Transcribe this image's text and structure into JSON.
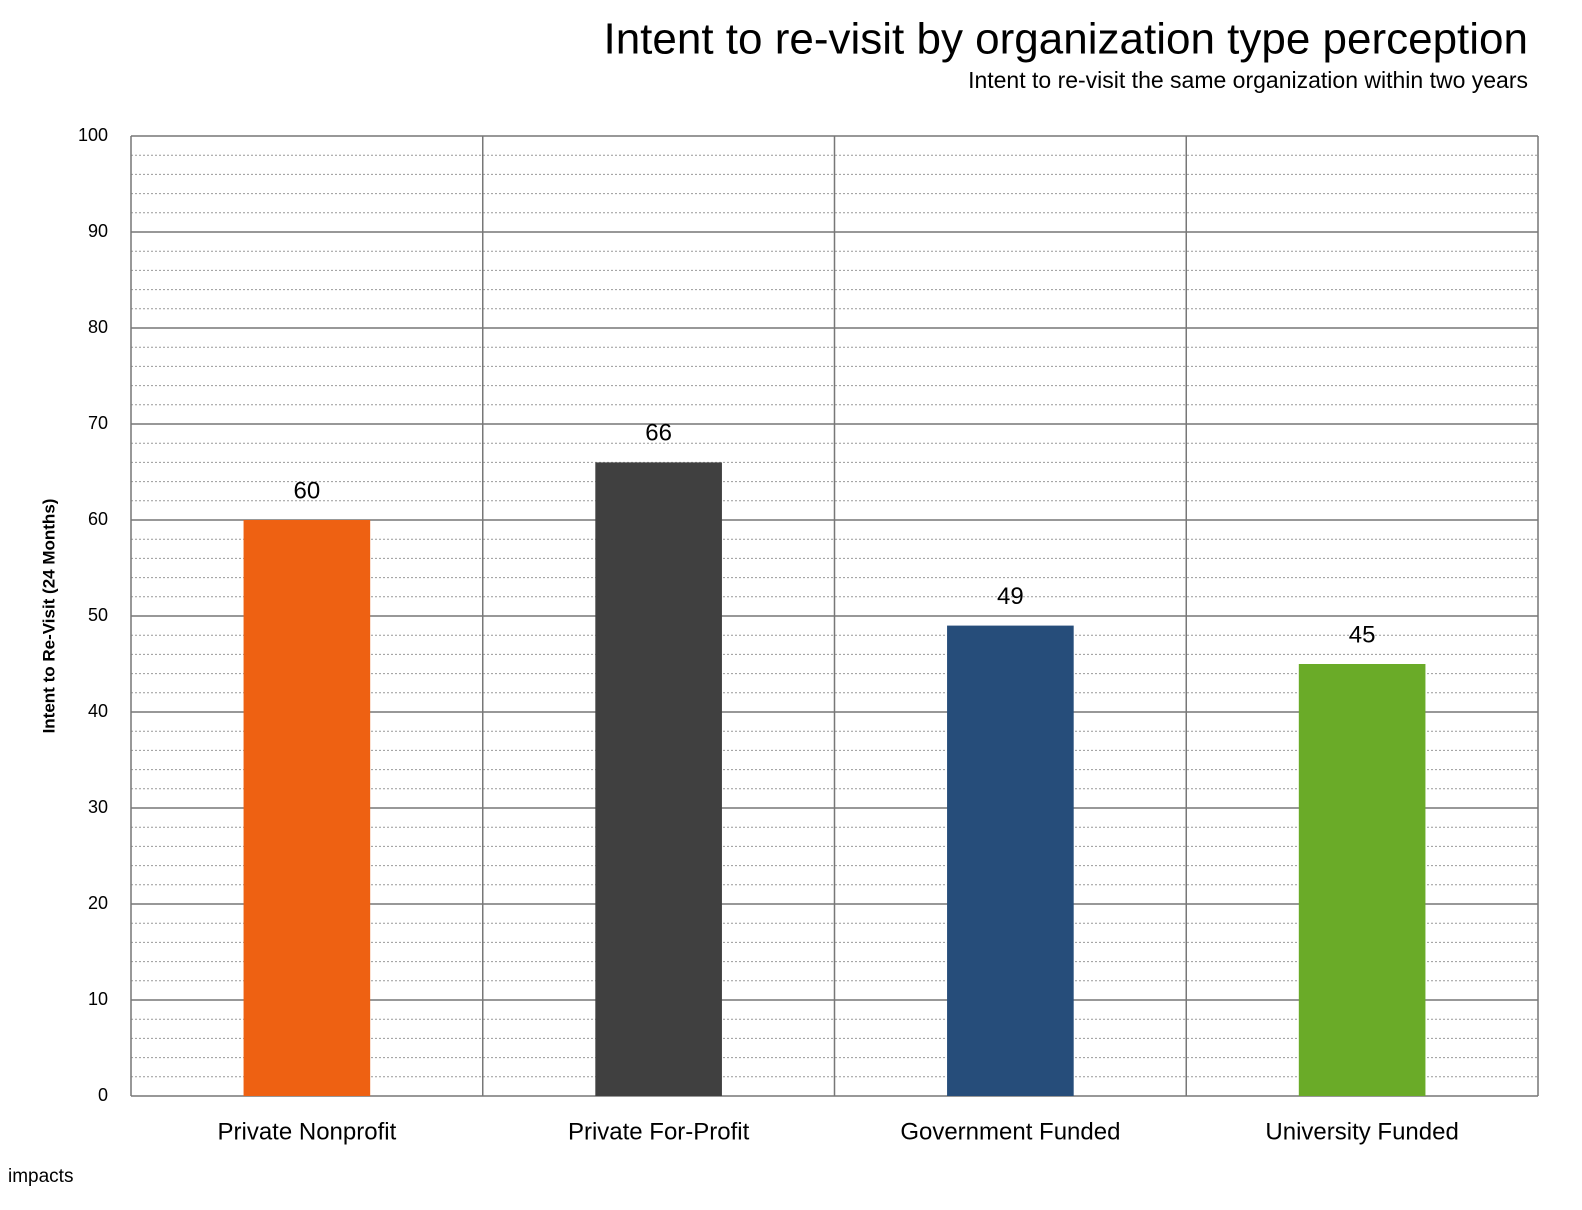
{
  "chart_data": {
    "type": "bar",
    "title": "Intent to re-visit by organization type perception",
    "subtitle": "Intent to re-visit the same organization within two years",
    "y_label": "Intent to Re-Visit (24 Months)",
    "categories": [
      "Private Nonprofit",
      "Private For-Profit",
      "Government Funded",
      "University Funded"
    ],
    "values": [
      60,
      66,
      49,
      45
    ],
    "colors": [
      "#ee6112",
      "#404040",
      "#264d7a",
      "#6aab28"
    ],
    "ylim": [
      0,
      100
    ],
    "yticks": [
      0,
      10,
      20,
      30,
      40,
      50,
      60,
      70,
      80,
      90,
      100
    ],
    "grid": true,
    "minor_grid_step": 2,
    "source": "impacts"
  }
}
